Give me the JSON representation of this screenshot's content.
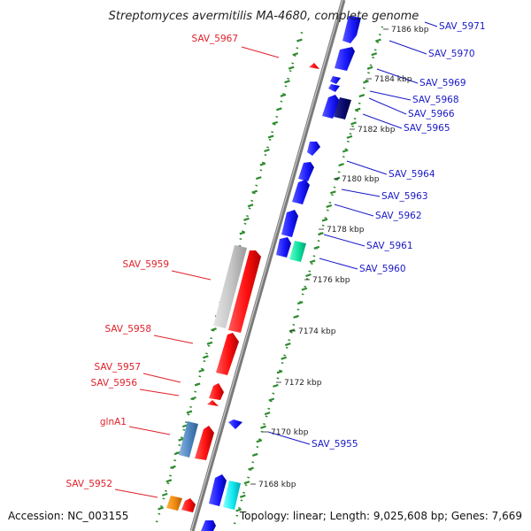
{
  "title": "Streptomyces avermitilis MA-4680, complete genome",
  "footer": {
    "accession": "Accession: NC_003155",
    "summary": "Topology: linear; Length: 9,025,608 bp; Genes: 7,669"
  },
  "colors": {
    "left_label": "#e0202a",
    "right_label": "#1818c8",
    "tick_green": "#2e8b2e",
    "backbone": "#8a8a8a"
  },
  "scale_labels": [
    "7168 kbp",
    "7170 kbp",
    "7172 kbp",
    "7174 kbp",
    "7176 kbp",
    "7178 kbp",
    "7180 kbp",
    "7182 kbp",
    "7184 kbp",
    "7186 kbp"
  ],
  "left_genes": [
    {
      "id": "SAV_5967",
      "label": "SAV_5967",
      "color": "#ff1a1a"
    },
    {
      "id": "SAV_5959",
      "label": "SAV_5959",
      "color": "#c9c9c9"
    },
    {
      "id": "SAV_5958",
      "label": "SAV_5958",
      "color": "#ff1a1a"
    },
    {
      "id": "SAV_5957",
      "label": "SAV_5957",
      "color": "#ff1a1a"
    },
    {
      "id": "SAV_5956",
      "label": "SAV_5956",
      "color": "#ff1a1a"
    },
    {
      "id": "glnA1",
      "label": "glnA1",
      "color": "#5b8fc9"
    },
    {
      "id": "SAV_5952",
      "label": "SAV_5952",
      "color": "#ee8a10"
    }
  ],
  "right_genes": [
    {
      "id": "SAV_5971",
      "label": "SAV_5971",
      "color": "#1a1aff"
    },
    {
      "id": "SAV_5970",
      "label": "SAV_5970",
      "color": "#1a1aff"
    },
    {
      "id": "SAV_5969",
      "label": "SAV_5969",
      "color": "#1a1aff"
    },
    {
      "id": "SAV_5968",
      "label": "SAV_5968",
      "color": "#1a1aff"
    },
    {
      "id": "SAV_5966",
      "label": "SAV_5966",
      "color": "#0a0a6e"
    },
    {
      "id": "SAV_5965",
      "label": "SAV_5965",
      "color": "#1a1aff"
    },
    {
      "id": "SAV_5964",
      "label": "SAV_5964",
      "color": "#1a1aff"
    },
    {
      "id": "SAV_5963",
      "label": "SAV_5963",
      "color": "#1a1aff"
    },
    {
      "id": "SAV_5962",
      "label": "SAV_5962",
      "color": "#1a1aff"
    },
    {
      "id": "SAV_5961",
      "label": "SAV_5961",
      "color": "#1a1aff"
    },
    {
      "id": "SAV_5960",
      "label": "SAV_5960",
      "color": "#10e0a0"
    },
    {
      "id": "SAV_5955",
      "label": "SAV_5955",
      "color": "#1a1aff"
    }
  ]
}
